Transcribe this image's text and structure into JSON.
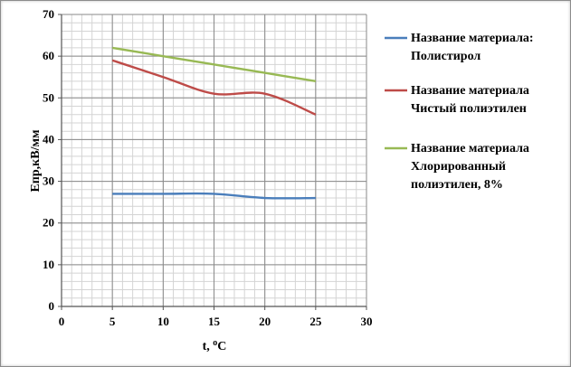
{
  "chart_data": {
    "type": "line",
    "title": "",
    "xlabel": "t, ",
    "xlabel_sup": "o",
    "xlabel_unit": "C",
    "ylabel": "Eпр,кВ/мм",
    "xlim": [
      0,
      30
    ],
    "ylim": [
      0,
      70
    ],
    "x_ticks": [
      0,
      5,
      10,
      15,
      20,
      25,
      30
    ],
    "y_ticks": [
      0,
      10,
      20,
      30,
      40,
      50,
      60,
      70
    ],
    "grid": true,
    "minor_grid": true,
    "legend_position": "right",
    "x": [
      5,
      10,
      15,
      20,
      25
    ],
    "series": [
      {
        "name_lines": [
          "Название материала:",
          "Полистирол"
        ],
        "color": "#4a7ebb",
        "values": [
          27,
          27,
          27,
          26,
          26
        ]
      },
      {
        "name_lines": [
          "Название материала",
          "Чистый полиэтилен"
        ],
        "color": "#be4b48",
        "values": [
          59,
          55,
          51,
          51,
          46
        ]
      },
      {
        "name_lines": [
          "Название материала",
          "Хлорированный",
          "полиэтилен, 8%"
        ],
        "color": "#98b954",
        "values": [
          62,
          60,
          58,
          56,
          54
        ]
      }
    ]
  }
}
